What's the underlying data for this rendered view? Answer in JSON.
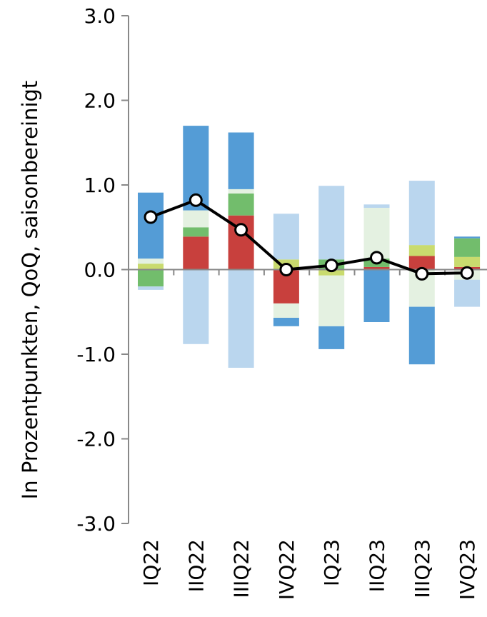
{
  "chart_data": {
    "type": "bar",
    "stacked": true,
    "title": "",
    "xlabel": "",
    "ylabel": "In Prozentpunkten, QoQ, saisonbereinigt",
    "ylim": [
      -3.0,
      3.0
    ],
    "yticks": [
      "3.0",
      "2.0",
      "1.0",
      "0.0",
      "-1.0",
      "-2.0",
      "-3.0"
    ],
    "categories": [
      "IQ22",
      "IIQ22",
      "IIIQ22",
      "IVQ22",
      "IQ23",
      "IIQ23",
      "IIIQ23",
      "IVQ23"
    ],
    "series": [
      {
        "color": "#c8403d",
        "values": [
          0.0,
          0.39,
          0.64,
          -0.4,
          0.0,
          0.03,
          0.16,
          0.03
        ]
      },
      {
        "color": "#c9db6e",
        "values": [
          0.07,
          0.0,
          0.0,
          0.12,
          -0.07,
          0.0,
          0.13,
          0.12
        ]
      },
      {
        "color": "#72bd6c",
        "values": [
          -0.2,
          0.11,
          0.26,
          0.0,
          0.12,
          0.1,
          0.0,
          0.22
        ]
      },
      {
        "color": "#e4f1e1",
        "values": [
          0.06,
          0.2,
          0.05,
          -0.17,
          -0.6,
          0.6,
          -0.44,
          -0.12
        ]
      },
      {
        "color": "#549cd6",
        "values": [
          0.78,
          1.0,
          0.67,
          -0.1,
          -0.27,
          -0.62,
          -0.68,
          0.02
        ]
      },
      {
        "color": "#bad6ee",
        "values": [
          -0.04,
          -0.88,
          -1.16,
          0.54,
          0.87,
          0.04,
          0.76,
          -0.32
        ]
      }
    ],
    "line": {
      "color": "#000000",
      "values": [
        0.62,
        0.82,
        0.47,
        0.0,
        0.05,
        0.14,
        -0.05,
        -0.04
      ]
    }
  }
}
